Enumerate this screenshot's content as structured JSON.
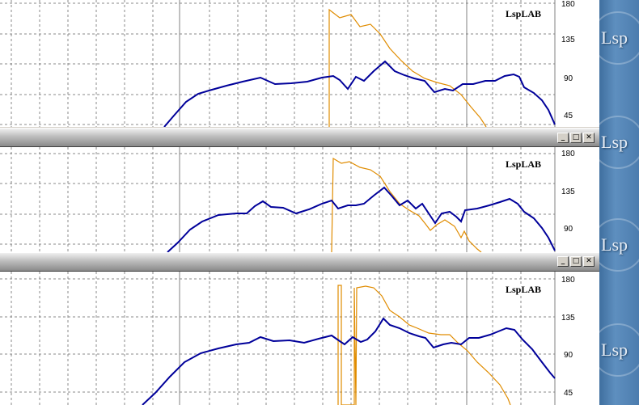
{
  "app": {
    "brand": "LspLAB"
  },
  "window_controls": {
    "minimize": "_",
    "maximize": "□",
    "close": "✕"
  },
  "sidebar": {
    "logo_text": "Lsp"
  },
  "panels": [
    {
      "id": "panel-1",
      "brand": "LspLAB",
      "y_ticks": [
        "180",
        "135",
        "90",
        "45"
      ]
    },
    {
      "id": "panel-2",
      "brand": "LspLAB",
      "y_ticks": [
        "180",
        "135",
        "90"
      ]
    },
    {
      "id": "panel-3",
      "brand": "LspLAB",
      "y_ticks": [
        "180",
        "135",
        "90",
        "45"
      ]
    }
  ],
  "colors": {
    "magnitude": "#00009a",
    "phase": "#e08c00",
    "grid": "#808080",
    "sidebar": "#4c7cae"
  },
  "icons": [
    "minimize-icon",
    "maximize-icon",
    "close-icon",
    "lsp-logo"
  ]
}
